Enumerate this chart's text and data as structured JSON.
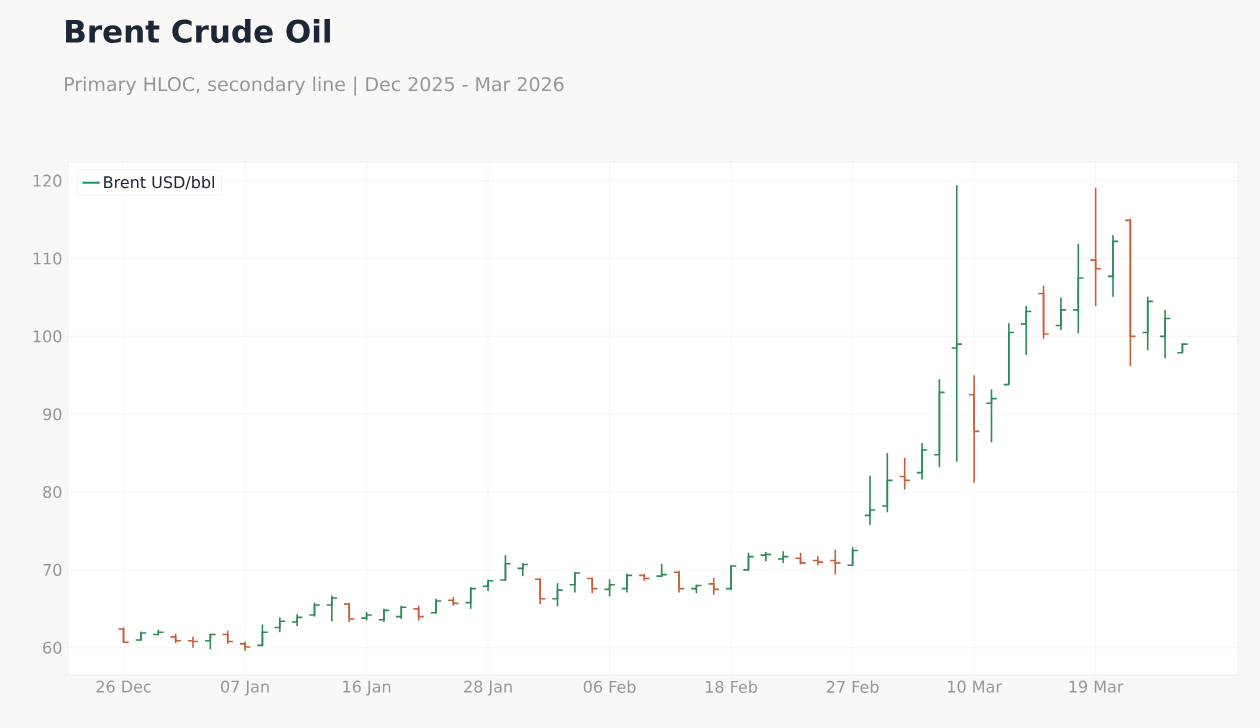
{
  "chart_data": {
    "type": "candlestick",
    "title": "Brent Crude Oil",
    "subtitle": "Primary HLOC, secondary line | Dec 2025 - Mar 2026",
    "categories": [
      "26 Dec",
      null,
      null,
      null,
      null,
      null,
      null,
      "07 Jan",
      null,
      null,
      null,
      null,
      null,
      null,
      "16 Jan",
      null,
      null,
      null,
      null,
      null,
      null,
      "28 Jan",
      null,
      null,
      null,
      null,
      null,
      null,
      "06 Feb",
      null,
      null,
      null,
      null,
      null,
      null,
      "18 Feb",
      null,
      null,
      null,
      null,
      null,
      null,
      "27 Feb",
      null,
      null,
      null,
      null,
      null,
      null,
      "10 Mar",
      null,
      null,
      null,
      null,
      null,
      null,
      "19 Mar",
      null,
      null,
      null,
      null,
      null
    ],
    "series": [
      {
        "name": "Brent USD/bbl",
        "color": "#12956a",
        "colors": [
          "#c8603c",
          "#2e8b57",
          "#2e8b57",
          "#c8603c",
          "#c8603c",
          "#2e8b57",
          "#c8603c",
          "#c8603c",
          "#2e8b57",
          "#2e8b57",
          "#2e8b57",
          "#2e8b57",
          "#2e8b57",
          "#c8603c",
          "#2e8b57",
          "#2e8b57",
          "#2e8b57",
          "#c8603c",
          "#2e8b57",
          "#c8603c",
          "#2e8b57",
          "#2e8b57",
          "#2e8b57",
          "#2e8b57",
          "#c8603c",
          "#2e8b57",
          "#2e8b57",
          "#c8603c",
          "#2e8b57",
          "#2e8b57",
          "#c8603c",
          "#2e8b57",
          "#c8603c",
          "#2e8b57",
          "#c8603c",
          "#2e8b57",
          "#2e8b57",
          "#2e8b57",
          "#2e8b57",
          "#c8603c",
          "#c8603c",
          "#c8603c",
          "#2e8b57",
          "#2e8b57",
          "#2e8b57",
          "#c8603c",
          "#2e8b57",
          "#2e8b57",
          "#2e8b57",
          "#c8603c",
          "#2e8b57",
          "#2e8b57",
          "#2e8b57",
          "#c8603c",
          "#2e8b57",
          "#2e8b57",
          "#c8603c",
          "#2e8b57",
          "#c8603c",
          "#2e8b57",
          "#2e8b57",
          "#2e8b57"
        ],
        "ohlc": [
          [
            62.4,
            62.6,
            60.6,
            60.7
          ],
          [
            61.0,
            62.1,
            60.9,
            61.9
          ],
          [
            61.7,
            62.3,
            61.6,
            62.0
          ],
          [
            61.4,
            61.8,
            60.6,
            60.9
          ],
          [
            60.9,
            61.4,
            60.0,
            60.8
          ],
          [
            60.9,
            61.8,
            59.8,
            61.7
          ],
          [
            61.7,
            62.2,
            60.5,
            60.8
          ],
          [
            60.5,
            60.8,
            59.6,
            60.1
          ],
          [
            60.3,
            63.0,
            60.2,
            62.0
          ],
          [
            62.6,
            63.9,
            62.0,
            63.4
          ],
          [
            63.3,
            64.3,
            62.8,
            63.9
          ],
          [
            64.2,
            65.8,
            64.0,
            65.5
          ],
          [
            65.5,
            66.7,
            63.4,
            66.4
          ],
          [
            65.6,
            65.8,
            63.3,
            63.7
          ],
          [
            63.8,
            64.6,
            63.5,
            64.2
          ],
          [
            63.6,
            65.0,
            63.3,
            64.8
          ],
          [
            64.0,
            65.4,
            63.7,
            65.2
          ],
          [
            65.0,
            65.4,
            63.5,
            64.0
          ],
          [
            64.5,
            66.3,
            64.4,
            66.0
          ],
          [
            66.1,
            66.5,
            65.4,
            65.7
          ],
          [
            65.8,
            67.8,
            65.0,
            67.6
          ],
          [
            67.9,
            68.6,
            67.3,
            68.6
          ],
          [
            68.7,
            71.9,
            68.6,
            70.8
          ],
          [
            70.2,
            70.9,
            69.2,
            70.7
          ],
          [
            68.8,
            68.9,
            65.6,
            66.3
          ],
          [
            66.3,
            68.3,
            65.3,
            67.4
          ],
          [
            68.1,
            69.7,
            67.1,
            69.6
          ],
          [
            68.9,
            69.0,
            67.0,
            67.6
          ],
          [
            67.5,
            68.8,
            66.6,
            68.1
          ],
          [
            67.6,
            69.5,
            67.1,
            69.3
          ],
          [
            69.3,
            69.5,
            68.6,
            68.9
          ],
          [
            69.2,
            70.8,
            69.1,
            69.4
          ],
          [
            69.7,
            69.9,
            67.1,
            67.6
          ],
          [
            67.6,
            68.1,
            67.0,
            68.0
          ],
          [
            68.2,
            69.0,
            66.8,
            67.5
          ],
          [
            67.6,
            70.6,
            67.4,
            70.5
          ],
          [
            70.0,
            72.2,
            69.9,
            71.7
          ],
          [
            71.9,
            72.3,
            71.1,
            72.0
          ],
          [
            71.4,
            72.4,
            70.9,
            71.7
          ],
          [
            71.5,
            72.2,
            70.7,
            70.9
          ],
          [
            71.2,
            71.8,
            70.6,
            71.0
          ],
          [
            71.2,
            72.6,
            69.4,
            70.9
          ],
          [
            70.6,
            72.9,
            70.5,
            72.5
          ],
          [
            77.0,
            82.1,
            75.8,
            77.7
          ],
          [
            78.2,
            85.0,
            77.4,
            81.5
          ],
          [
            82.0,
            84.4,
            80.3,
            81.5
          ],
          [
            82.5,
            86.3,
            81.6,
            85.4
          ],
          [
            84.8,
            94.5,
            83.2,
            92.8
          ],
          [
            98.5,
            119.4,
            83.9,
            99.0
          ],
          [
            92.5,
            95.0,
            81.2,
            87.8
          ],
          [
            91.4,
            93.2,
            86.4,
            92.0
          ],
          [
            93.8,
            101.7,
            93.8,
            100.5
          ],
          [
            101.6,
            103.9,
            97.6,
            103.2
          ],
          [
            105.5,
            106.5,
            99.7,
            100.3
          ],
          [
            101.4,
            105.0,
            100.8,
            103.4
          ],
          [
            103.4,
            111.9,
            100.4,
            107.5
          ],
          [
            109.8,
            119.1,
            103.9,
            108.7
          ],
          [
            107.7,
            113.0,
            105.1,
            112.2
          ],
          [
            114.9,
            115.1,
            96.2,
            100.0
          ],
          [
            100.5,
            105.1,
            98.2,
            104.5
          ],
          [
            100.0,
            103.4,
            97.2,
            102.3
          ],
          [
            97.9,
            99.1,
            97.9,
            99.0
          ]
        ]
      }
    ],
    "ylim": [
      56.5,
      122.4
    ],
    "yticks": [
      60,
      70,
      80,
      90,
      100,
      110,
      120
    ],
    "grid": true,
    "legend": "top left"
  }
}
